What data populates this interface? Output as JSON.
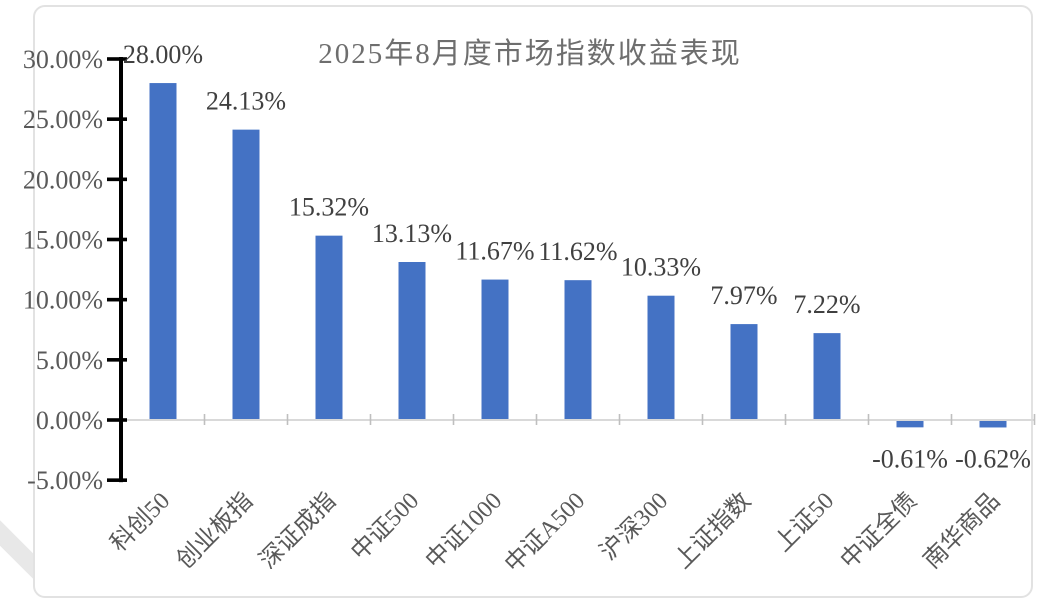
{
  "chart_data": {
    "type": "bar",
    "title": "2025年8月度市场指数收益表现",
    "categories": [
      "科创50",
      "创业板指",
      "深证成指",
      "中证500",
      "中证1000",
      "中证A500",
      "沪深300",
      "上证指数",
      "上证50",
      "中证全债",
      "南华商品"
    ],
    "values": [
      28.0,
      24.13,
      15.32,
      13.13,
      11.67,
      11.62,
      10.33,
      7.97,
      7.22,
      -0.61,
      -0.62
    ],
    "value_labels": [
      "28.00%",
      "24.13%",
      "15.32%",
      "13.13%",
      "11.67%",
      "11.62%",
      "10.33%",
      "7.97%",
      "7.22%",
      "-0.61%",
      "-0.62%"
    ],
    "y_ticks": [
      {
        "value": 30,
        "label": "30.00%"
      },
      {
        "value": 25,
        "label": "25.00%"
      },
      {
        "value": 20,
        "label": "20.00%"
      },
      {
        "value": 15,
        "label": "15.00%"
      },
      {
        "value": 10,
        "label": "10.00%"
      },
      {
        "value": 5,
        "label": "5.00%"
      },
      {
        "value": 0,
        "label": "0.00%"
      },
      {
        "value": -5,
        "label": "-5.00%"
      }
    ],
    "ylim": [
      -5,
      30
    ],
    "xlabel": "",
    "ylabel": "",
    "legend": "none",
    "grid": "off",
    "bar_color": "#4472c4",
    "title_color": "#6e6e6e",
    "value_label_color": "#404040",
    "axis_text_color": "#595959",
    "y_axis_line_color": "#000000",
    "baseline_color": "#d9d9d9",
    "boundary_tick_color": "#bfbfbf"
  }
}
